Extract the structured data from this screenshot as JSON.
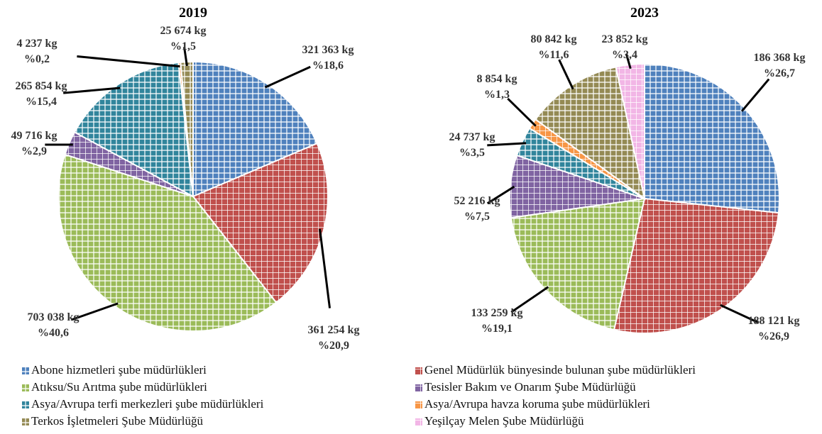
{
  "legend": {
    "entries": [
      {
        "name": "Abone hizmetleri şube müdürlükleri",
        "color": "#4f81bd"
      },
      {
        "name": "Genel Müdürlük bünyesinde bulunan şube müdürlükleri",
        "color": "#c0504d"
      },
      {
        "name": "Atıksu/Su Arıtma şube müdürlükleri",
        "color": "#9bbb59"
      },
      {
        "name": "Tesisler Bakım ve Onarım Şube Müdürlüğü",
        "color": "#8064a2"
      },
      {
        "name": "Asya/Avrupa terfi merkezleri şube müdürlükleri",
        "color": "#31859c"
      },
      {
        "name": "Asya/Avrupa havza koruma şube müdürlükleri",
        "color": "#f79646"
      },
      {
        "name": "Terkos İşletmeleri Şube Müdürlüğü",
        "color": "#948a54"
      },
      {
        "name": "Yeşilçay Melen Şube Müdürlüğü",
        "color": "#f2b6e6"
      }
    ]
  },
  "chart_data": [
    {
      "type": "pie",
      "title": "2019",
      "values": [
        321363,
        361254,
        703038,
        49716,
        265854,
        4237,
        25674,
        null
      ],
      "value_labels": [
        "321 363 kg",
        "361 254 kg",
        "703 038 kg",
        "49 716 kg",
        "265 854 kg",
        "4 237 kg",
        "25 674 kg",
        null
      ],
      "percentages": [
        18.6,
        20.9,
        40.6,
        2.9,
        15.4,
        0.2,
        1.5,
        null
      ],
      "percentage_labels": [
        "%18,6",
        "%20,9",
        "%40,6",
        "%2,9",
        "%15,4",
        "%0,2",
        "%1,5",
        null
      ]
    },
    {
      "type": "pie",
      "title": "2023",
      "values": [
        186368,
        188121,
        133259,
        52216,
        24737,
        8854,
        80842,
        23852
      ],
      "value_labels": [
        "186 368 kg",
        "188 121 kg",
        "133 259 kg",
        "52 216 kg",
        "24 737 kg",
        "8 854 kg",
        "80 842 kg",
        "23 852 kg"
      ],
      "percentages": [
        26.7,
        26.9,
        19.1,
        7.5,
        3.5,
        1.3,
        11.6,
        3.4
      ],
      "percentage_labels": [
        "%26,7",
        "%26,9",
        "%19,1",
        "%7,5",
        "%3,5",
        "%1,3",
        "%11,6",
        "%3,4"
      ]
    }
  ]
}
